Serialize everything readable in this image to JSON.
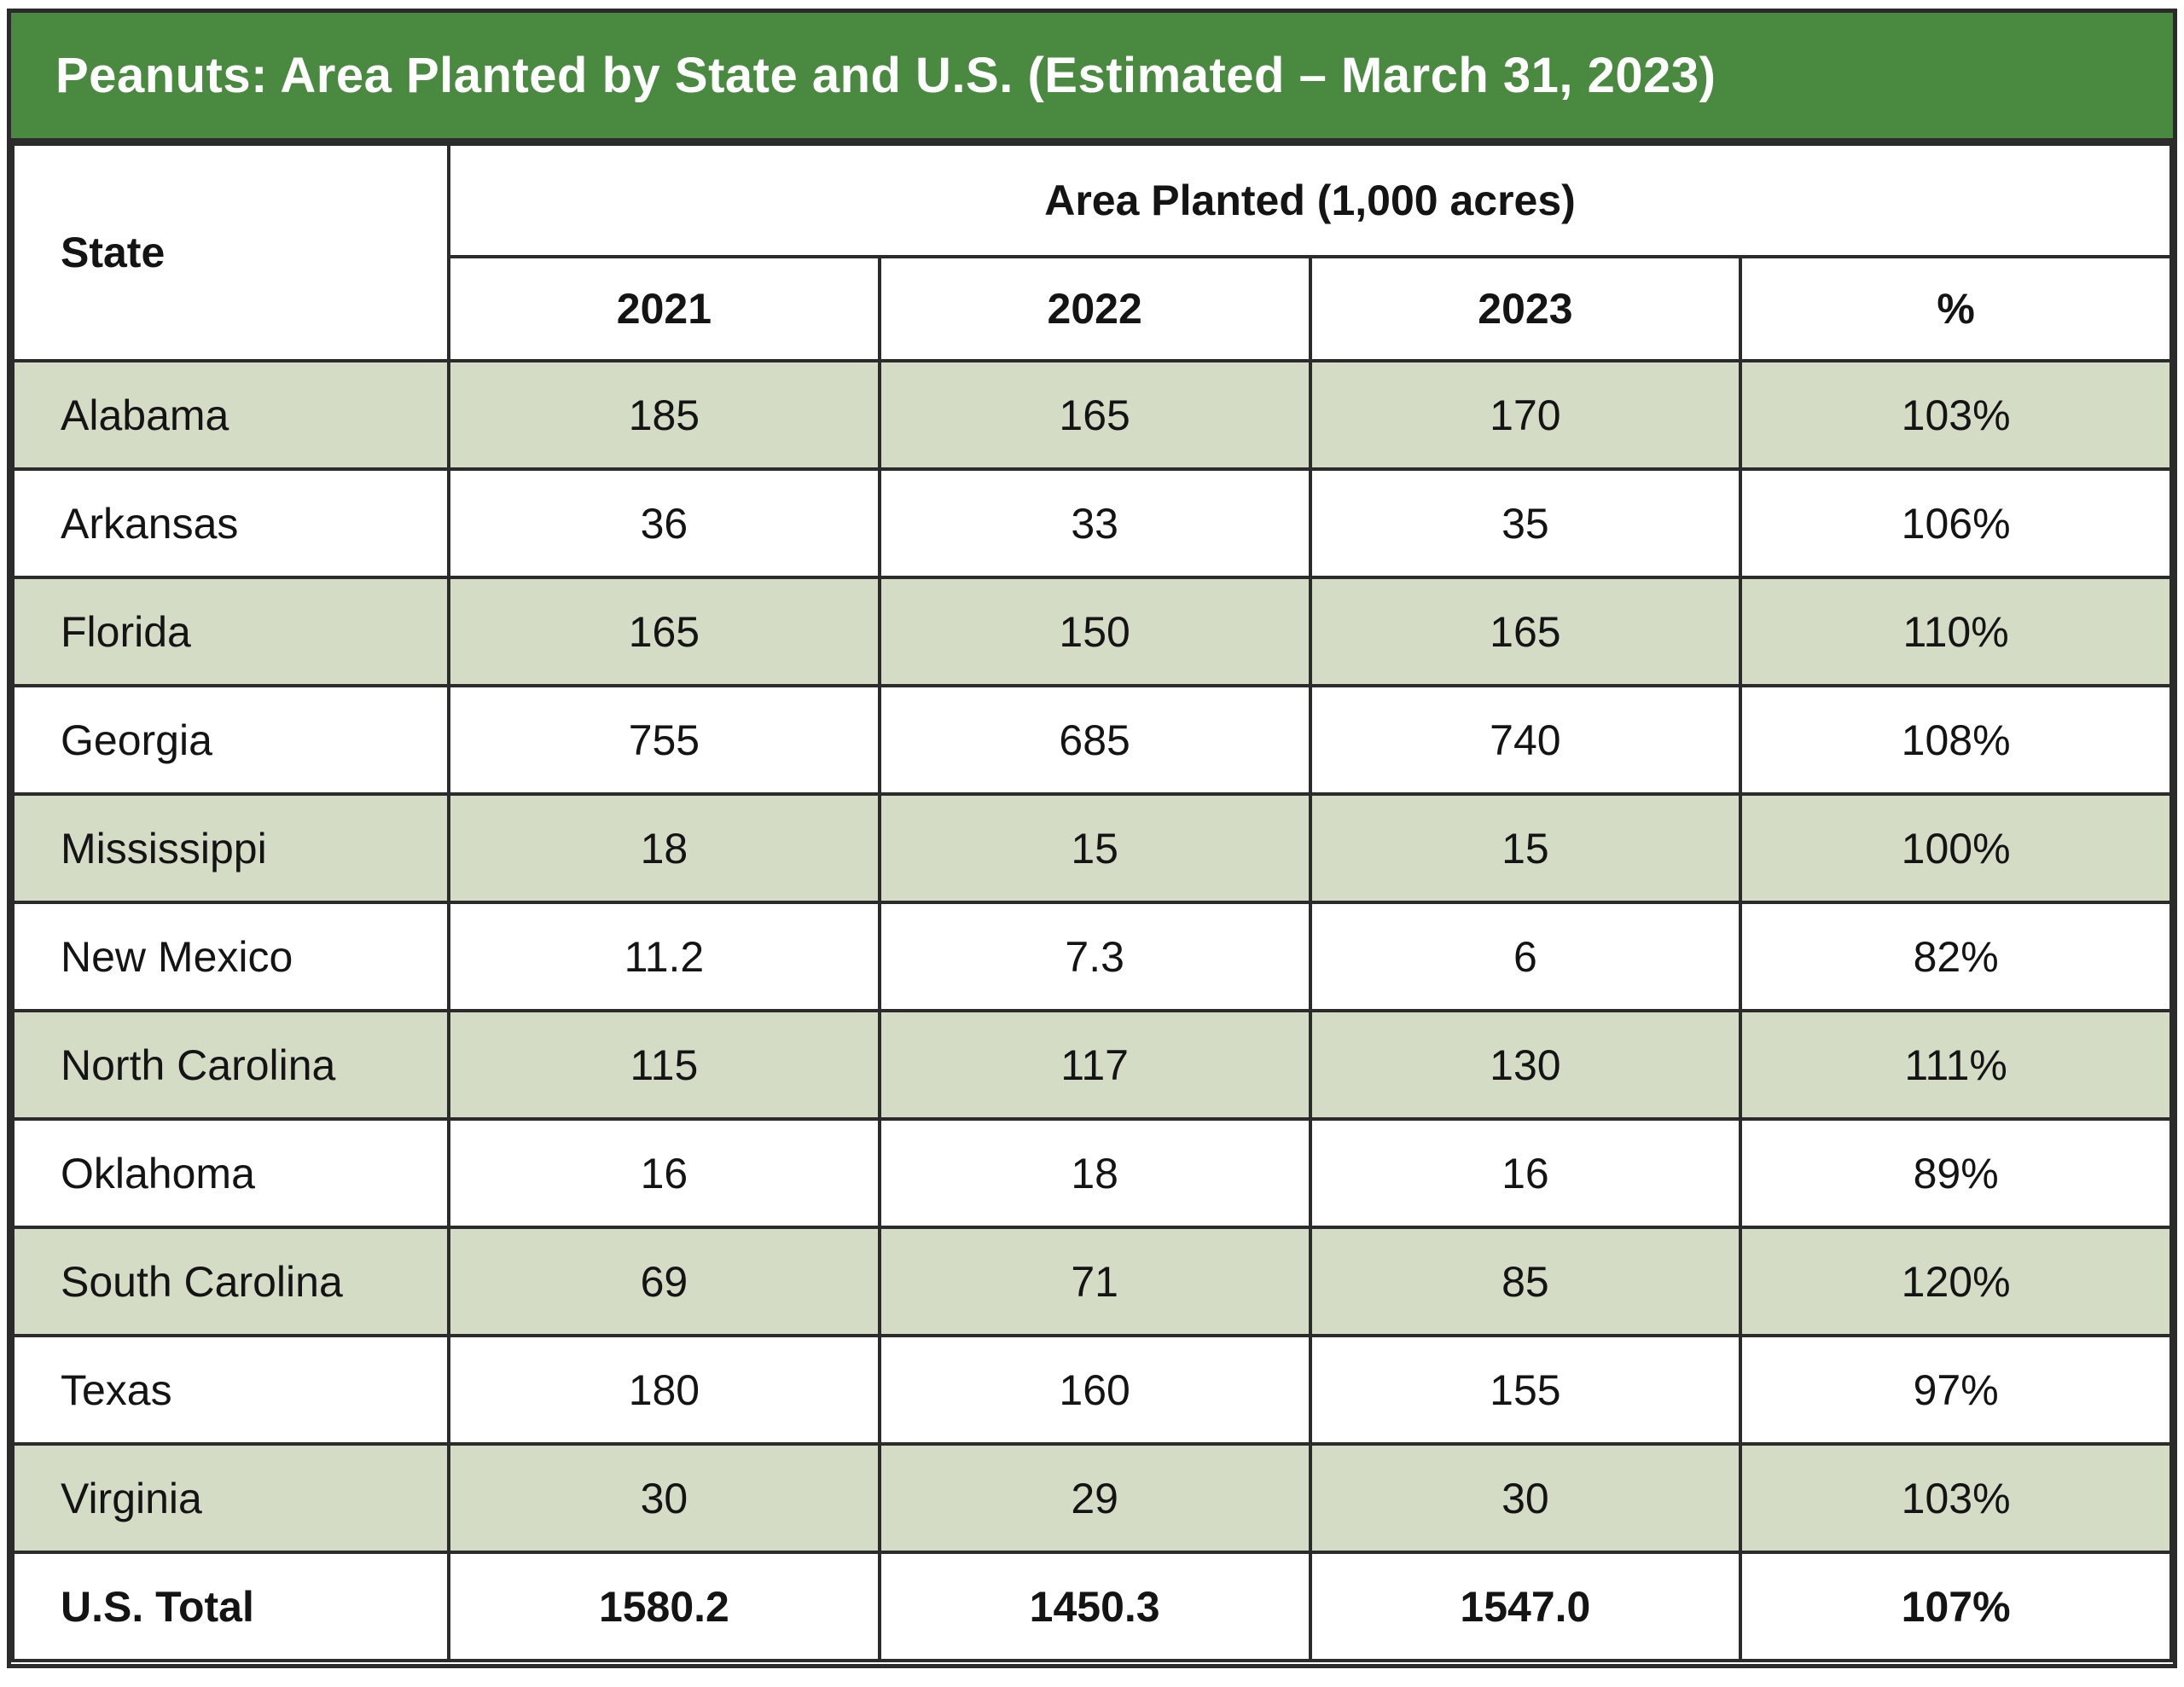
{
  "title": "Peanuts: Area Planted by State and U.S. (Estimated – March 31, 2023)",
  "table": {
    "state_header": "State",
    "group_header": "Area Planted (1,000 acres)",
    "column_headers": [
      "2021",
      "2022",
      "2023",
      "%"
    ],
    "rows": [
      {
        "state": "Alabama",
        "values": [
          "185",
          "165",
          "170",
          "103%"
        ],
        "type": "data"
      },
      {
        "state": "Arkansas",
        "values": [
          "36",
          "33",
          "35",
          "106%"
        ],
        "type": "data"
      },
      {
        "state": "Florida",
        "values": [
          "165",
          "150",
          "165",
          "110%"
        ],
        "type": "data"
      },
      {
        "state": "Georgia",
        "values": [
          "755",
          "685",
          "740",
          "108%"
        ],
        "type": "data"
      },
      {
        "state": "Mississippi",
        "values": [
          "18",
          "15",
          "15",
          "100%"
        ],
        "type": "data"
      },
      {
        "state": "New Mexico",
        "values": [
          "11.2",
          "7.3",
          "6",
          "82%"
        ],
        "type": "data"
      },
      {
        "state": "North Carolina",
        "values": [
          "115",
          "117",
          "130",
          "111%"
        ],
        "type": "data"
      },
      {
        "state": "Oklahoma",
        "values": [
          "16",
          "18",
          "16",
          "89%"
        ],
        "type": "data"
      },
      {
        "state": "South Carolina",
        "values": [
          "69",
          "71",
          "85",
          "120%"
        ],
        "type": "data"
      },
      {
        "state": "Texas",
        "values": [
          "180",
          "160",
          "155",
          "97%"
        ],
        "type": "data"
      },
      {
        "state": "Virginia",
        "values": [
          "30",
          "29",
          "30",
          "103%"
        ],
        "type": "data"
      },
      {
        "state": "U.S. Total",
        "values": [
          "1580.2",
          "1450.3",
          "1547.0",
          "107%"
        ],
        "type": "total"
      }
    ]
  },
  "colors": {
    "header_green": "#4A8A40",
    "row_green": "#D4DCC6",
    "border": "#2B2B2B",
    "title_text": "#FFFFFF",
    "body_text": "#141414"
  },
  "chart_data": {
    "type": "table",
    "title": "Peanuts: Area Planted by State and U.S. (Estimated – March 31, 2023)",
    "unit": "1,000 acres",
    "categories": [
      "Alabama",
      "Arkansas",
      "Florida",
      "Georgia",
      "Mississippi",
      "New Mexico",
      "North Carolina",
      "Oklahoma",
      "South Carolina",
      "Texas",
      "Virginia",
      "U.S. Total"
    ],
    "series": [
      {
        "name": "2021",
        "values": [
          185,
          36,
          165,
          755,
          18,
          11.2,
          115,
          16,
          69,
          180,
          30,
          1580.2
        ]
      },
      {
        "name": "2022",
        "values": [
          165,
          33,
          150,
          685,
          15,
          7.3,
          117,
          18,
          71,
          160,
          29,
          1450.3
        ]
      },
      {
        "name": "2023",
        "values": [
          170,
          35,
          165,
          740,
          15,
          6,
          130,
          16,
          85,
          155,
          30,
          1547.0
        ]
      },
      {
        "name": "%",
        "values": [
          "103%",
          "106%",
          "110%",
          "108%",
          "100%",
          "82%",
          "111%",
          "89%",
          "120%",
          "97%",
          "103%",
          "107%"
        ]
      }
    ]
  }
}
